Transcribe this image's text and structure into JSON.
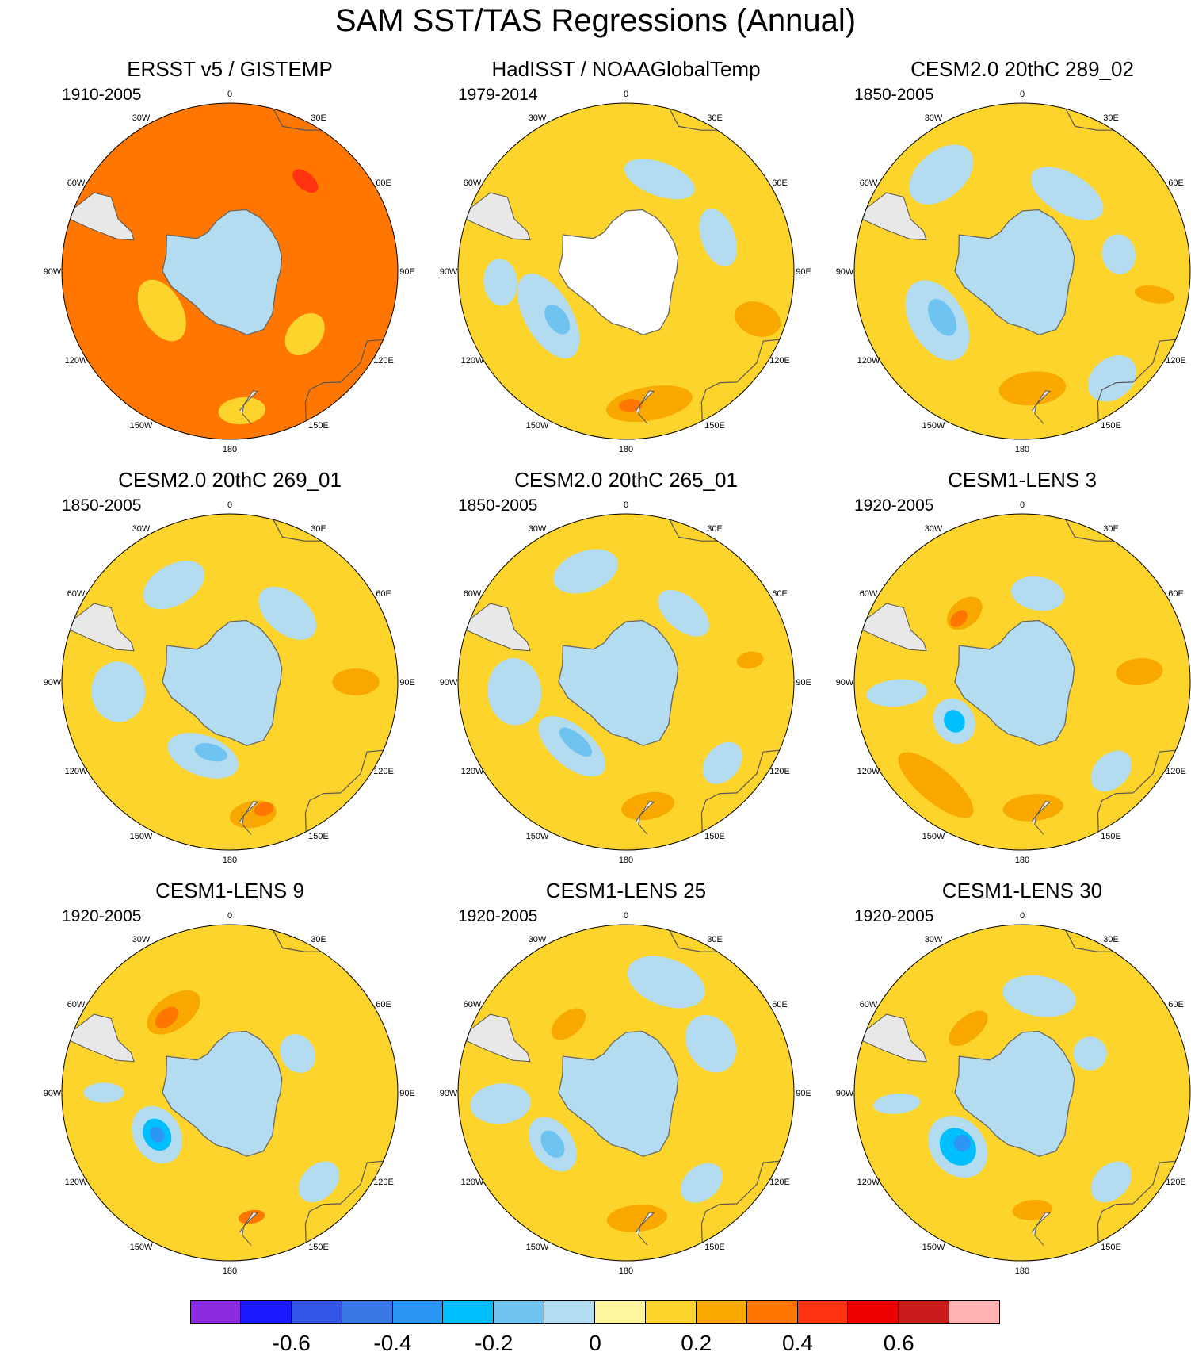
{
  "title": "SAM SST/TAS Regressions (Annual)",
  "chart_data": {
    "type": "heatmap",
    "projection": "south-polar-stereographic",
    "lon_labels": [
      "0",
      "30E",
      "60E",
      "90E",
      "120E",
      "150E",
      "180",
      "150W",
      "120W",
      "90W",
      "60W",
      "30W"
    ],
    "panels": [
      {
        "title": "ERSST v5 / GISTEMP",
        "period": "1910-2005",
        "antarctica_fill": "#b3dcf0",
        "base": 0.3,
        "features": [
          {
            "lon": -20,
            "lat": -45,
            "rx": 0.28,
            "ry": 0.16,
            "value": 0.35
          },
          {
            "lon": 50,
            "lat": -45,
            "rx": 0.22,
            "ry": 0.13,
            "value": 0.35
          },
          {
            "lon": 40,
            "lat": -48,
            "rx": 0.09,
            "ry": 0.05,
            "value": 0.45
          },
          {
            "lon": -90,
            "lat": -48,
            "rx": 0.22,
            "ry": 0.12,
            "value": 0.3
          },
          {
            "lon": -120,
            "lat": -62,
            "rx": 0.2,
            "ry": 0.12,
            "value": 0.1
          },
          {
            "lon": 175,
            "lat": -40,
            "rx": 0.14,
            "ry": 0.08,
            "value": 0.1
          },
          {
            "lon": 130,
            "lat": -55,
            "rx": 0.14,
            "ry": 0.1,
            "value": 0.1
          },
          {
            "lon": 150,
            "lat": -45,
            "rx": 0.12,
            "ry": 0.08,
            "value": 0.3
          }
        ]
      },
      {
        "title": "HadISST / NOAAGlobalTemp",
        "period": "1979-2014",
        "antarctica_fill": "#ffffff",
        "base": 0.1,
        "features": [
          {
            "lon": -120,
            "lat": -58,
            "rx": 0.28,
            "ry": 0.14,
            "value": -0.1
          },
          {
            "lon": -125,
            "lat": -60,
            "rx": 0.1,
            "ry": 0.06,
            "value": -0.2
          },
          {
            "lon": -95,
            "lat": -45,
            "rx": 0.14,
            "ry": 0.1,
            "value": -0.1
          },
          {
            "lon": 20,
            "lat": -55,
            "rx": 0.22,
            "ry": 0.1,
            "value": -0.1
          },
          {
            "lon": 70,
            "lat": -55,
            "rx": 0.18,
            "ry": 0.1,
            "value": -0.1
          },
          {
            "lon": 170,
            "lat": -42,
            "rx": 0.26,
            "ry": 0.1,
            "value": 0.2
          },
          {
            "lon": 110,
            "lat": -40,
            "rx": 0.1,
            "ry": 0.14,
            "value": 0.2
          },
          {
            "lon": 178,
            "lat": -42,
            "rx": 0.07,
            "ry": 0.04,
            "value": 0.3
          }
        ]
      },
      {
        "title": "CESM2.0 20thC 289_02",
        "period": "1850-2005",
        "antarctica_fill": "#b3dcf0",
        "base": 0.1,
        "features": [
          {
            "lon": -120,
            "lat": -55,
            "rx": 0.26,
            "ry": 0.16,
            "value": -0.1
          },
          {
            "lon": -120,
            "lat": -57,
            "rx": 0.12,
            "ry": 0.07,
            "value": -0.2
          },
          {
            "lon": -40,
            "lat": -45,
            "rx": 0.22,
            "ry": 0.14,
            "value": -0.1
          },
          {
            "lon": 30,
            "lat": -58,
            "rx": 0.24,
            "ry": 0.12,
            "value": -0.1
          },
          {
            "lon": 80,
            "lat": -55,
            "rx": 0.12,
            "ry": 0.1,
            "value": -0.1
          },
          {
            "lon": 140,
            "lat": -40,
            "rx": 0.16,
            "ry": 0.12,
            "value": -0.1
          },
          {
            "lon": 175,
            "lat": -48,
            "rx": 0.2,
            "ry": 0.1,
            "value": 0.2
          },
          {
            "lon": 100,
            "lat": -42,
            "rx": 0.05,
            "ry": 0.12,
            "value": 0.2
          }
        ]
      },
      {
        "title": "CESM2.0 20thC 269_01",
        "period": "1850-2005",
        "antarctica_fill": "#b3dcf0",
        "base": 0.1,
        "features": [
          {
            "lon": -160,
            "lat": -62,
            "rx": 0.22,
            "ry": 0.12,
            "value": -0.1
          },
          {
            "lon": -165,
            "lat": -64,
            "rx": 0.1,
            "ry": 0.05,
            "value": -0.2
          },
          {
            "lon": -95,
            "lat": -50,
            "rx": 0.18,
            "ry": 0.16,
            "value": -0.1
          },
          {
            "lon": -30,
            "lat": -50,
            "rx": 0.2,
            "ry": 0.12,
            "value": -0.1
          },
          {
            "lon": 40,
            "lat": -58,
            "rx": 0.2,
            "ry": 0.12,
            "value": -0.1
          },
          {
            "lon": 90,
            "lat": -45,
            "rx": 0.08,
            "ry": 0.14,
            "value": 0.2
          },
          {
            "lon": 170,
            "lat": -42,
            "rx": 0.14,
            "ry": 0.08,
            "value": 0.2
          },
          {
            "lon": 165,
            "lat": -43,
            "rx": 0.06,
            "ry": 0.04,
            "value": 0.3
          }
        ]
      },
      {
        "title": "CESM2.0 20thC 265_01",
        "period": "1850-2005",
        "antarctica_fill": "#b3dcf0",
        "base": 0.1,
        "features": [
          {
            "lon": -140,
            "lat": -60,
            "rx": 0.24,
            "ry": 0.12,
            "value": -0.1
          },
          {
            "lon": -140,
            "lat": -62,
            "rx": 0.12,
            "ry": 0.05,
            "value": -0.2
          },
          {
            "lon": -95,
            "lat": -50,
            "rx": 0.2,
            "ry": 0.16,
            "value": -0.1
          },
          {
            "lon": -20,
            "lat": -48,
            "rx": 0.2,
            "ry": 0.12,
            "value": -0.1
          },
          {
            "lon": 40,
            "lat": -58,
            "rx": 0.18,
            "ry": 0.1,
            "value": -0.1
          },
          {
            "lon": 170,
            "lat": -45,
            "rx": 0.16,
            "ry": 0.08,
            "value": 0.2
          },
          {
            "lon": 80,
            "lat": -45,
            "rx": 0.05,
            "ry": 0.08,
            "value": 0.2
          },
          {
            "lon": 130,
            "lat": -45,
            "rx": 0.14,
            "ry": 0.1,
            "value": -0.1
          }
        ]
      },
      {
        "title": "CESM1-LENS 3",
        "period": "1920-2005",
        "antarctica_fill": "#b3dcf0",
        "base": 0.1,
        "features": [
          {
            "lon": -120,
            "lat": -62,
            "rx": 0.14,
            "ry": 0.12,
            "value": -0.1
          },
          {
            "lon": -120,
            "lat": -62,
            "rx": 0.07,
            "ry": 0.06,
            "value": -0.3
          },
          {
            "lon": -95,
            "lat": -45,
            "rx": 0.08,
            "ry": 0.18,
            "value": -0.1
          },
          {
            "lon": -40,
            "lat": -58,
            "rx": 0.12,
            "ry": 0.08,
            "value": 0.2
          },
          {
            "lon": -45,
            "lat": -58,
            "rx": 0.06,
            "ry": 0.04,
            "value": 0.3
          },
          {
            "lon": -140,
            "lat": -42,
            "rx": 0.28,
            "ry": 0.1,
            "value": 0.2
          },
          {
            "lon": 10,
            "lat": -58,
            "rx": 0.16,
            "ry": 0.1,
            "value": -0.1
          },
          {
            "lon": 135,
            "lat": -45,
            "rx": 0.14,
            "ry": 0.1,
            "value": -0.1
          },
          {
            "lon": 85,
            "lat": -48,
            "rx": 0.08,
            "ry": 0.14,
            "value": 0.2
          },
          {
            "lon": 175,
            "lat": -45,
            "rx": 0.18,
            "ry": 0.08,
            "value": 0.2
          }
        ]
      },
      {
        "title": "CESM1-LENS 9",
        "period": "1920-2005",
        "antarctica_fill": "#b3dcf0",
        "base": 0.15,
        "features": [
          {
            "lon": -120,
            "lat": -60,
            "rx": 0.18,
            "ry": 0.14,
            "value": -0.1
          },
          {
            "lon": -120,
            "lat": -60,
            "rx": 0.1,
            "ry": 0.08,
            "value": -0.3
          },
          {
            "lon": -120,
            "lat": -60,
            "rx": 0.05,
            "ry": 0.04,
            "value": -0.4
          },
          {
            "lon": -35,
            "lat": -55,
            "rx": 0.18,
            "ry": 0.1,
            "value": 0.25
          },
          {
            "lon": -40,
            "lat": -55,
            "rx": 0.08,
            "ry": 0.05,
            "value": 0.3
          },
          {
            "lon": 60,
            "lat": -62,
            "rx": 0.12,
            "ry": 0.1,
            "value": -0.1
          },
          {
            "lon": 135,
            "lat": -45,
            "rx": 0.14,
            "ry": 0.1,
            "value": -0.1
          },
          {
            "lon": -90,
            "lat": -45,
            "rx": 0.06,
            "ry": 0.12,
            "value": -0.1
          },
          {
            "lon": 170,
            "lat": -45,
            "rx": 0.08,
            "ry": 0.04,
            "value": 0.3
          }
        ]
      },
      {
        "title": "CESM1-LENS 25",
        "period": "1920-2005",
        "antarctica_fill": "#b3dcf0",
        "base": 0.1,
        "features": [
          {
            "lon": -125,
            "lat": -58,
            "rx": 0.18,
            "ry": 0.12,
            "value": -0.1
          },
          {
            "lon": -125,
            "lat": -58,
            "rx": 0.09,
            "ry": 0.06,
            "value": -0.2
          },
          {
            "lon": -95,
            "lat": -45,
            "rx": 0.12,
            "ry": 0.18,
            "value": -0.1
          },
          {
            "lon": 20,
            "lat": -48,
            "rx": 0.24,
            "ry": 0.14,
            "value": -0.1
          },
          {
            "lon": 60,
            "lat": -55,
            "rx": 0.18,
            "ry": 0.14,
            "value": -0.1
          },
          {
            "lon": 140,
            "lat": -48,
            "rx": 0.14,
            "ry": 0.1,
            "value": -0.1
          },
          {
            "lon": -40,
            "lat": -58,
            "rx": 0.12,
            "ry": 0.07,
            "value": 0.2
          },
          {
            "lon": 175,
            "lat": -45,
            "rx": 0.18,
            "ry": 0.08,
            "value": 0.2
          }
        ]
      },
      {
        "title": "CESM1-LENS 30",
        "period": "1920-2005",
        "antarctica_fill": "#b3dcf0",
        "base": 0.1,
        "features": [
          {
            "lon": -130,
            "lat": -60,
            "rx": 0.2,
            "ry": 0.16,
            "value": -0.1
          },
          {
            "lon": -130,
            "lat": -60,
            "rx": 0.12,
            "ry": 0.1,
            "value": -0.3
          },
          {
            "lon": -130,
            "lat": -62,
            "rx": 0.05,
            "ry": 0.05,
            "value": -0.4
          },
          {
            "lon": -95,
            "lat": -45,
            "rx": 0.06,
            "ry": 0.14,
            "value": -0.1
          },
          {
            "lon": 10,
            "lat": -55,
            "rx": 0.22,
            "ry": 0.12,
            "value": -0.1
          },
          {
            "lon": 60,
            "lat": -62,
            "rx": 0.1,
            "ry": 0.1,
            "value": -0.1
          },
          {
            "lon": 135,
            "lat": -45,
            "rx": 0.14,
            "ry": 0.1,
            "value": -0.1
          },
          {
            "lon": -40,
            "lat": -60,
            "rx": 0.14,
            "ry": 0.07,
            "value": 0.2
          },
          {
            "lon": 175,
            "lat": -48,
            "rx": 0.12,
            "ry": 0.06,
            "value": 0.2
          }
        ]
      }
    ],
    "colorbar": {
      "levels": [
        -0.7,
        -0.6,
        -0.5,
        -0.4,
        -0.3,
        -0.2,
        -0.1,
        0,
        0.1,
        0.2,
        0.3,
        0.4,
        0.5,
        0.6,
        0.7
      ],
      "colors": [
        "#8a2be2",
        "#1a1aff",
        "#3355e6",
        "#3b78e7",
        "#2b96f5",
        "#00bfff",
        "#6fc3f0",
        "#b3dcf0",
        "#fff59e",
        "#fcd42b",
        "#f9a800",
        "#ff7700",
        "#ff3311",
        "#ee0000",
        "#cc1b1b",
        "#ffb3b3"
      ],
      "tick_labels": [
        "-0.6",
        "-0.4",
        "-0.2",
        "0",
        "0.2",
        "0.4",
        "0.6"
      ],
      "tick_values": [
        -0.6,
        -0.4,
        -0.2,
        0,
        0.2,
        0.4,
        0.6
      ]
    }
  }
}
